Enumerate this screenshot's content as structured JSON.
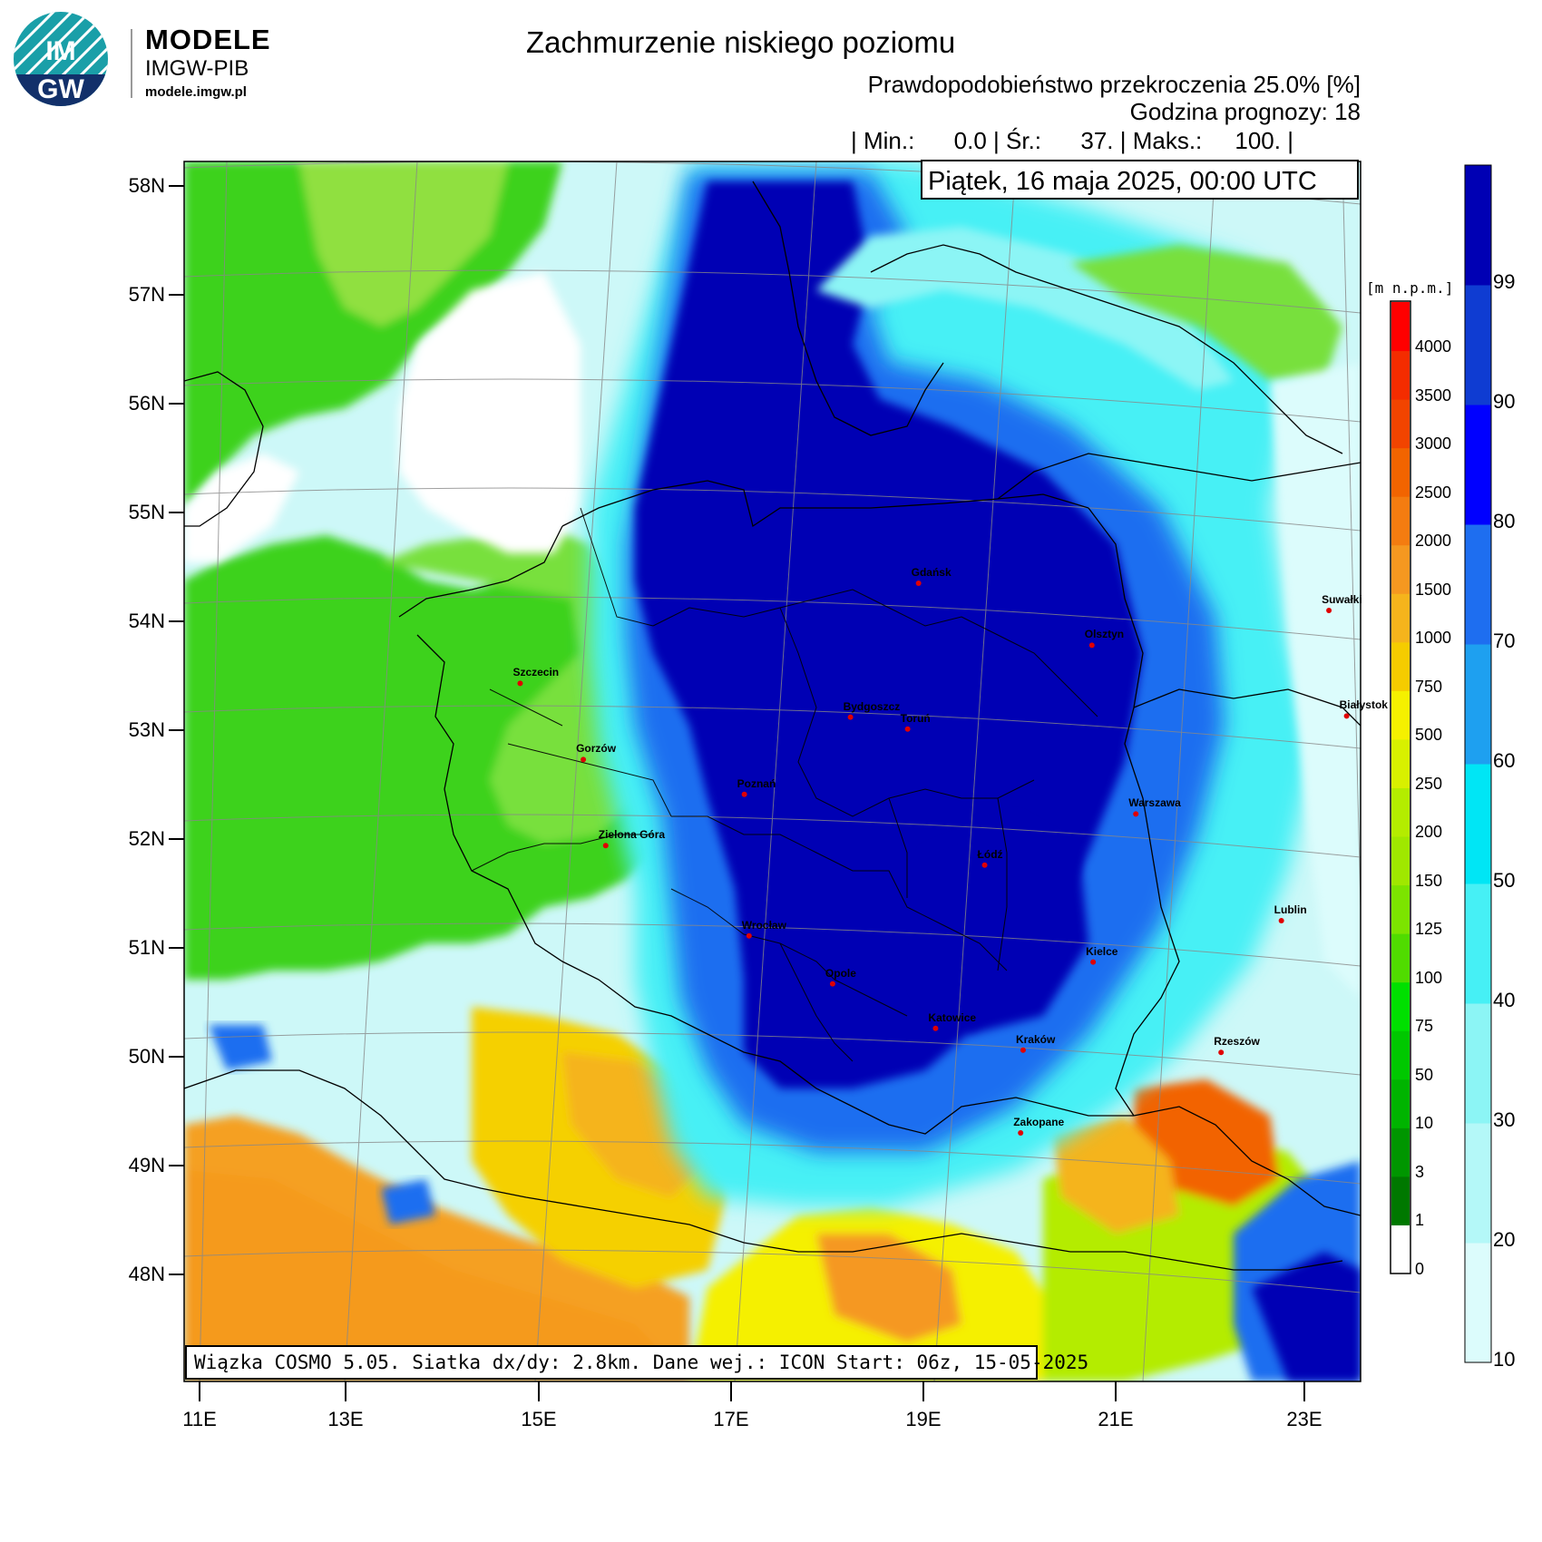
{
  "logo": {
    "brand": "MODELE",
    "org": "IMGW-PIB",
    "site": "modele.imgw.pl",
    "badge_top": "IM",
    "badge_bottom": "GW"
  },
  "header": {
    "title": "Zachmurzenie niskiego poziomu",
    "subtitle": "Prawdopodobieństwo przekroczenia 25.0% [%]",
    "forecast_hour": "Godzina prognozy: 18",
    "stats": "| Min.:      0.0 | Śr.:      37. | Maks.:     100. |"
  },
  "map": {
    "date_text": "Piątek, 16 maja 2025, 00:00 UTC",
    "info_text": "Wiązka COSMO 5.05. Siatka dx/dy: 2.8km. Dane wej.: ICON Start: 06z, 15-05-2025",
    "lat_labels": [
      "58N",
      "57N",
      "56N",
      "55N",
      "54N",
      "53N",
      "52N",
      "51N",
      "50N",
      "49N",
      "48N"
    ],
    "lon_labels": [
      "11E",
      "13E",
      "15E",
      "17E",
      "19E",
      "21E",
      "23E"
    ],
    "cities": [
      {
        "name": "Gdańsk",
        "lon": 18.65,
        "lat": 54.35
      },
      {
        "name": "Olsztyn",
        "lon": 20.48,
        "lat": 53.78
      },
      {
        "name": "Suwałki",
        "lon": 22.93,
        "lat": 54.1
      },
      {
        "name": "Białystok",
        "lon": 23.16,
        "lat": 53.13
      },
      {
        "name": "Szczecin",
        "lon": 14.55,
        "lat": 53.43
      },
      {
        "name": "Bydgoszcz",
        "lon": 18.0,
        "lat": 53.12
      },
      {
        "name": "Toruń",
        "lon": 18.6,
        "lat": 53.01
      },
      {
        "name": "Gorzów",
        "lon": 15.24,
        "lat": 52.73
      },
      {
        "name": "Poznań",
        "lon": 16.93,
        "lat": 52.41
      },
      {
        "name": "Warszawa",
        "lon": 21.01,
        "lat": 52.23
      },
      {
        "name": "Łódź",
        "lon": 19.46,
        "lat": 51.76
      },
      {
        "name": "Zielona Góra",
        "lon": 15.51,
        "lat": 51.94
      },
      {
        "name": "Lublin",
        "lon": 22.57,
        "lat": 51.25
      },
      {
        "name": "Wrocław",
        "lon": 17.04,
        "lat": 51.11
      },
      {
        "name": "Kielce",
        "lon": 20.63,
        "lat": 50.87
      },
      {
        "name": "Opole",
        "lon": 17.93,
        "lat": 50.67
      },
      {
        "name": "Rzeszów",
        "lon": 22.0,
        "lat": 50.04
      },
      {
        "name": "Katowice",
        "lon": 19.02,
        "lat": 50.26
      },
      {
        "name": "Kraków",
        "lon": 19.94,
        "lat": 50.06
      },
      {
        "name": "Zakopane",
        "lon": 19.95,
        "lat": 49.3
      }
    ]
  },
  "elevation_legend": {
    "unit": "[m n.p.m.]",
    "labels": [
      "4000",
      "3500",
      "3000",
      "2500",
      "2000",
      "1500",
      "1000",
      "750",
      "500",
      "250",
      "200",
      "150",
      "125",
      "100",
      "75",
      "50",
      "10",
      "3",
      "1",
      "0"
    ],
    "colors": [
      "#ff0000",
      "#f42c00",
      "#f24400",
      "#f26400",
      "#f47c10",
      "#f59820",
      "#f5b41c",
      "#f5cc00",
      "#f5f000",
      "#d8f000",
      "#b4ec00",
      "#a0e800",
      "#7ce400",
      "#50dc00",
      "#00e000",
      "#00c800",
      "#00b400",
      "#009600",
      "#007800",
      "#ffffff"
    ]
  },
  "probability_legend": {
    "labels": [
      "99",
      "90",
      "80",
      "70",
      "60",
      "50",
      "40",
      "30",
      "20",
      "10"
    ],
    "colors": [
      "#0000b4",
      "#0f3cd2",
      "#0000ff",
      "#1e6ef0",
      "#1ea0f0",
      "#00e6f5",
      "#46f0f5",
      "#8cf5f5",
      "#b4f8f8",
      "#dcfcfc"
    ]
  }
}
